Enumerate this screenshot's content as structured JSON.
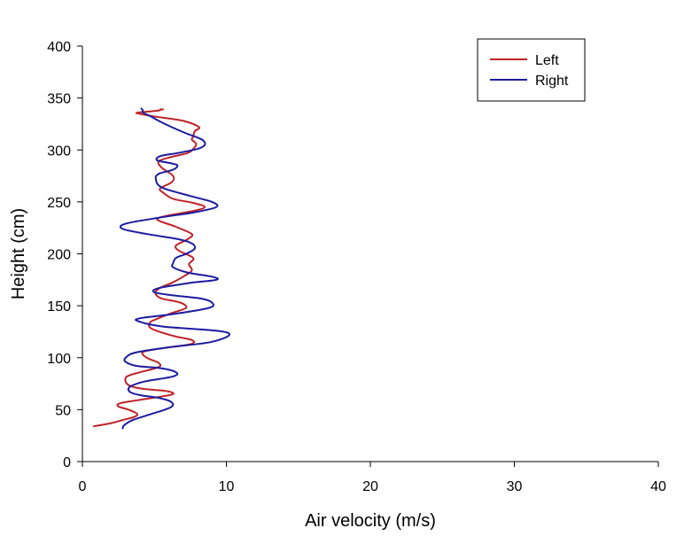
{
  "chart_data": {
    "type": "line",
    "title": "",
    "xlabel": "Air velocity (m/s)",
    "ylabel": "Height (cm)",
    "xlim": [
      0,
      40
    ],
    "ylim": [
      0,
      400
    ],
    "xticks": [
      0,
      10,
      20,
      30,
      40
    ],
    "yticks": [
      0,
      50,
      100,
      150,
      200,
      250,
      300,
      350,
      400
    ],
    "grid": false,
    "legend": {
      "position": "top-right",
      "entries": [
        "Left",
        "Right"
      ]
    },
    "series": [
      {
        "name": "Left",
        "color": "#c0232a",
        "points": [
          [
            0.8,
            34
          ],
          [
            2.0,
            37
          ],
          [
            2.8,
            40
          ],
          [
            3.6,
            43
          ],
          [
            3.8,
            46
          ],
          [
            3.2,
            50
          ],
          [
            2.5,
            53
          ],
          [
            2.6,
            56
          ],
          [
            3.8,
            59
          ],
          [
            5.2,
            62
          ],
          [
            6.3,
            65
          ],
          [
            5.8,
            68
          ],
          [
            4.2,
            70
          ],
          [
            3.3,
            73
          ],
          [
            3.0,
            77
          ],
          [
            3.1,
            82
          ],
          [
            4.0,
            86
          ],
          [
            5.3,
            91
          ],
          [
            5.3,
            95
          ],
          [
            4.6,
            99
          ],
          [
            4.2,
            103
          ],
          [
            4.3,
            106
          ],
          [
            5.5,
            109
          ],
          [
            7.5,
            113
          ],
          [
            7.6,
            117
          ],
          [
            6.3,
            121
          ],
          [
            4.8,
            128
          ],
          [
            4.7,
            134
          ],
          [
            5.3,
            138
          ],
          [
            6.2,
            143
          ],
          [
            7.2,
            148
          ],
          [
            6.8,
            153
          ],
          [
            5.5,
            157
          ],
          [
            5.1,
            161
          ],
          [
            5.1,
            164
          ],
          [
            5.5,
            168
          ],
          [
            6.2,
            172
          ],
          [
            7.0,
            178
          ],
          [
            7.6,
            184
          ],
          [
            7.4,
            190
          ],
          [
            7.7,
            196
          ],
          [
            6.7,
            203
          ],
          [
            6.5,
            208
          ],
          [
            7.3,
            214
          ],
          [
            7.6,
            219
          ],
          [
            6.5,
            226
          ],
          [
            5.2,
            233
          ],
          [
            6.0,
            237
          ],
          [
            7.6,
            241
          ],
          [
            8.5,
            245
          ],
          [
            7.7,
            249
          ],
          [
            6.3,
            253
          ],
          [
            5.6,
            259
          ],
          [
            5.4,
            263
          ],
          [
            6.2,
            269
          ],
          [
            6.3,
            275
          ],
          [
            5.5,
            283
          ],
          [
            5.3,
            289
          ],
          [
            6.1,
            293
          ],
          [
            7.3,
            297
          ],
          [
            7.7,
            301
          ],
          [
            7.9,
            306
          ],
          [
            7.6,
            310
          ],
          [
            7.7,
            313
          ],
          [
            7.8,
            318
          ],
          [
            8.1,
            322
          ],
          [
            7.0,
            328
          ],
          [
            5.1,
            332
          ],
          [
            3.9,
            335
          ],
          [
            3.9,
            336
          ],
          [
            5.3,
            338
          ],
          [
            5.4,
            339
          ],
          [
            5.6,
            339
          ]
        ]
      },
      {
        "name": "Right",
        "color": "#1c1ca0",
        "points": [
          [
            2.8,
            32
          ],
          [
            2.9,
            35
          ],
          [
            3.5,
            40
          ],
          [
            4.6,
            45
          ],
          [
            6.1,
            52
          ],
          [
            6.2,
            57
          ],
          [
            5.4,
            61
          ],
          [
            4.0,
            64
          ],
          [
            3.3,
            67
          ],
          [
            3.3,
            72
          ],
          [
            4.3,
            77
          ],
          [
            6.3,
            82
          ],
          [
            6.5,
            86
          ],
          [
            5.4,
            90
          ],
          [
            3.8,
            92
          ],
          [
            3.0,
            96
          ],
          [
            3.0,
            100
          ],
          [
            3.7,
            105
          ],
          [
            6.0,
            110
          ],
          [
            8.9,
            115
          ],
          [
            10.2,
            122
          ],
          [
            9.3,
            126
          ],
          [
            5.6,
            130
          ],
          [
            3.9,
            135
          ],
          [
            4.0,
            138
          ],
          [
            6.3,
            142
          ],
          [
            8.8,
            148
          ],
          [
            9.0,
            153
          ],
          [
            8.2,
            157
          ],
          [
            6.3,
            160
          ],
          [
            5.0,
            163
          ],
          [
            5.3,
            167
          ],
          [
            7.5,
            172
          ],
          [
            9.3,
            175
          ],
          [
            9.0,
            178
          ],
          [
            7.3,
            182
          ],
          [
            6.3,
            187
          ],
          [
            6.3,
            191
          ],
          [
            6.5,
            196
          ],
          [
            7.2,
            200
          ],
          [
            7.8,
            205
          ],
          [
            7.6,
            210
          ],
          [
            6.7,
            214
          ],
          [
            4.5,
            219
          ],
          [
            2.8,
            224
          ],
          [
            3.0,
            229
          ],
          [
            5.4,
            235
          ],
          [
            7.8,
            240
          ],
          [
            9.3,
            245
          ],
          [
            9.0,
            250
          ],
          [
            7.4,
            256
          ],
          [
            5.5,
            264
          ],
          [
            5.1,
            272
          ],
          [
            5.3,
            277
          ],
          [
            6.3,
            281
          ],
          [
            6.6,
            285
          ],
          [
            6.2,
            287
          ],
          [
            5.2,
            290
          ],
          [
            5.4,
            294
          ],
          [
            6.6,
            297
          ],
          [
            8.0,
            301
          ],
          [
            8.5,
            305
          ],
          [
            8.3,
            310
          ],
          [
            7.2,
            316
          ],
          [
            6.2,
            322
          ],
          [
            5.3,
            328
          ],
          [
            4.8,
            332
          ],
          [
            4.2,
            336
          ],
          [
            4.2,
            338
          ],
          [
            4.1,
            340
          ]
        ]
      }
    ]
  }
}
